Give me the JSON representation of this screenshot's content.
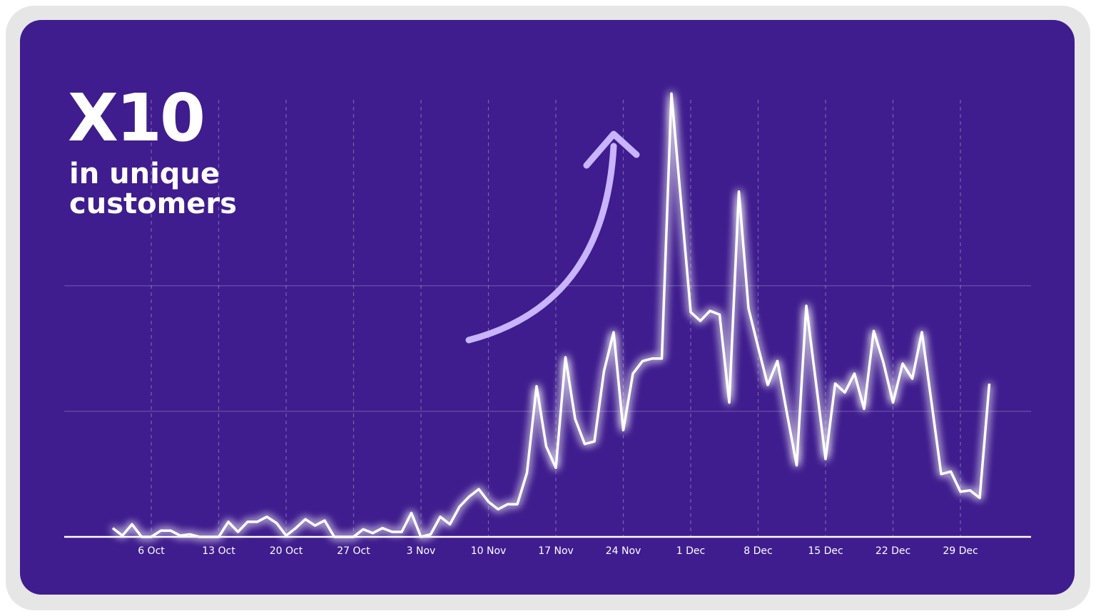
{
  "chart_data": {
    "type": "line",
    "title": "X10",
    "subtitle": [
      "in unique",
      "customers"
    ],
    "color": "#ffffff",
    "grid": true,
    "ylim": [
      0,
      3.6
    ],
    "yticks": [
      0,
      1,
      2
    ],
    "categories": [
      null,
      null,
      null,
      null,
      "6 Oct",
      null,
      null,
      null,
      null,
      null,
      null,
      "13 Oct",
      null,
      null,
      null,
      null,
      null,
      null,
      "20 Oct",
      null,
      null,
      null,
      null,
      null,
      null,
      "27 Oct",
      null,
      null,
      null,
      null,
      null,
      null,
      "3 Nov",
      null,
      null,
      null,
      null,
      null,
      null,
      "10 Nov",
      null,
      null,
      null,
      null,
      null,
      null,
      "17 Nov",
      null,
      null,
      null,
      null,
      null,
      null,
      "24 Nov",
      null,
      null,
      null,
      null,
      null,
      null,
      "1 Dec",
      null,
      null,
      null,
      null,
      null,
      null,
      "8 Dec",
      null,
      null,
      null,
      null,
      null,
      null,
      "15 Dec",
      null,
      null,
      null,
      null,
      null,
      null,
      "22 Dec",
      null,
      null,
      null,
      null,
      null,
      null,
      "29 Dec",
      null,
      null,
      null
    ],
    "values": [
      0.07,
      0.01,
      0.1,
      0,
      0,
      0.05,
      0.05,
      0.01,
      0.02,
      0,
      0,
      0,
      0.12,
      0.04,
      0.12,
      0.12,
      0.16,
      0.11,
      0.01,
      0.07,
      0.14,
      0.09,
      0.13,
      0,
      0,
      0,
      0.06,
      0.03,
      0.07,
      0.04,
      0.04,
      0.19,
      0,
      0.02,
      0.16,
      0.1,
      0.24,
      0.32,
      0.38,
      0.28,
      0.22,
      0.26,
      0.26,
      0.51,
      1.2,
      0.72,
      0.55,
      1.43,
      0.94,
      0.74,
      0.76,
      1.32,
      1.63,
      0.85,
      1.3,
      1.4,
      1.42,
      1.42,
      3.53,
      2.66,
      1.79,
      1.72,
      1.8,
      1.77,
      1.07,
      2.75,
      1.82,
      1.51,
      1.21,
      1.4,
      0.98,
      0.57,
      1.84,
      1.23,
      0.62,
      1.22,
      1.15,
      1.3,
      1.02,
      1.64,
      1.39,
      1.07,
      1.38,
      1.26,
      1.63,
      1.07,
      0.5,
      0.52,
      0.36,
      0.37,
      0.31,
      1.22
    ]
  }
}
